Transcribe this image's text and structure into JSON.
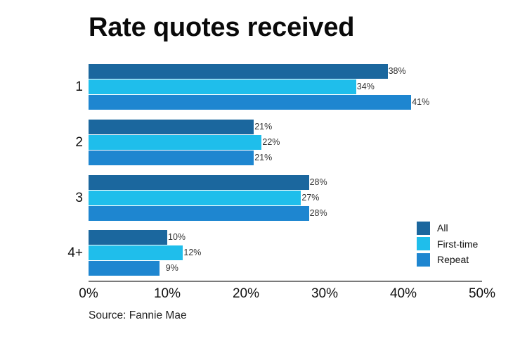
{
  "chart_data": {
    "type": "bar",
    "orientation": "horizontal",
    "title": "Rate quotes received",
    "xlabel": "",
    "ylabel": "",
    "categories": [
      "1",
      "2",
      "3",
      "4+"
    ],
    "series": [
      {
        "name": "All",
        "color": "#1B679E",
        "values": [
          38,
          21,
          28,
          10
        ]
      },
      {
        "name": "First-time",
        "color": "#1FBEEB",
        "values": [
          34,
          22,
          27,
          12
        ]
      },
      {
        "name": "Repeat",
        "color": "#1E86D0",
        "values": [
          41,
          21,
          28,
          9
        ]
      }
    ],
    "value_labels": [
      [
        "38%",
        "34%",
        "41%"
      ],
      [
        "21%",
        "22%",
        "21%"
      ],
      [
        "28%",
        "27%",
        "28%"
      ],
      [
        "10%",
        "12%",
        "9%"
      ]
    ],
    "xlim": [
      0,
      50
    ],
    "x_ticks": [
      "0%",
      "10%",
      "20%",
      "30%",
      "40%",
      "50%"
    ],
    "grid": false,
    "legend_position": "right-bottom",
    "source": "Source: Fannie Mae"
  },
  "title": "Rate quotes received",
  "legend": {
    "items": [
      {
        "label": "All",
        "color": "#1B679E"
      },
      {
        "label": "First-time",
        "color": "#1FBEEB"
      },
      {
        "label": "Repeat",
        "color": "#1E86D0"
      }
    ]
  },
  "source": "Source: Fannie Mae"
}
